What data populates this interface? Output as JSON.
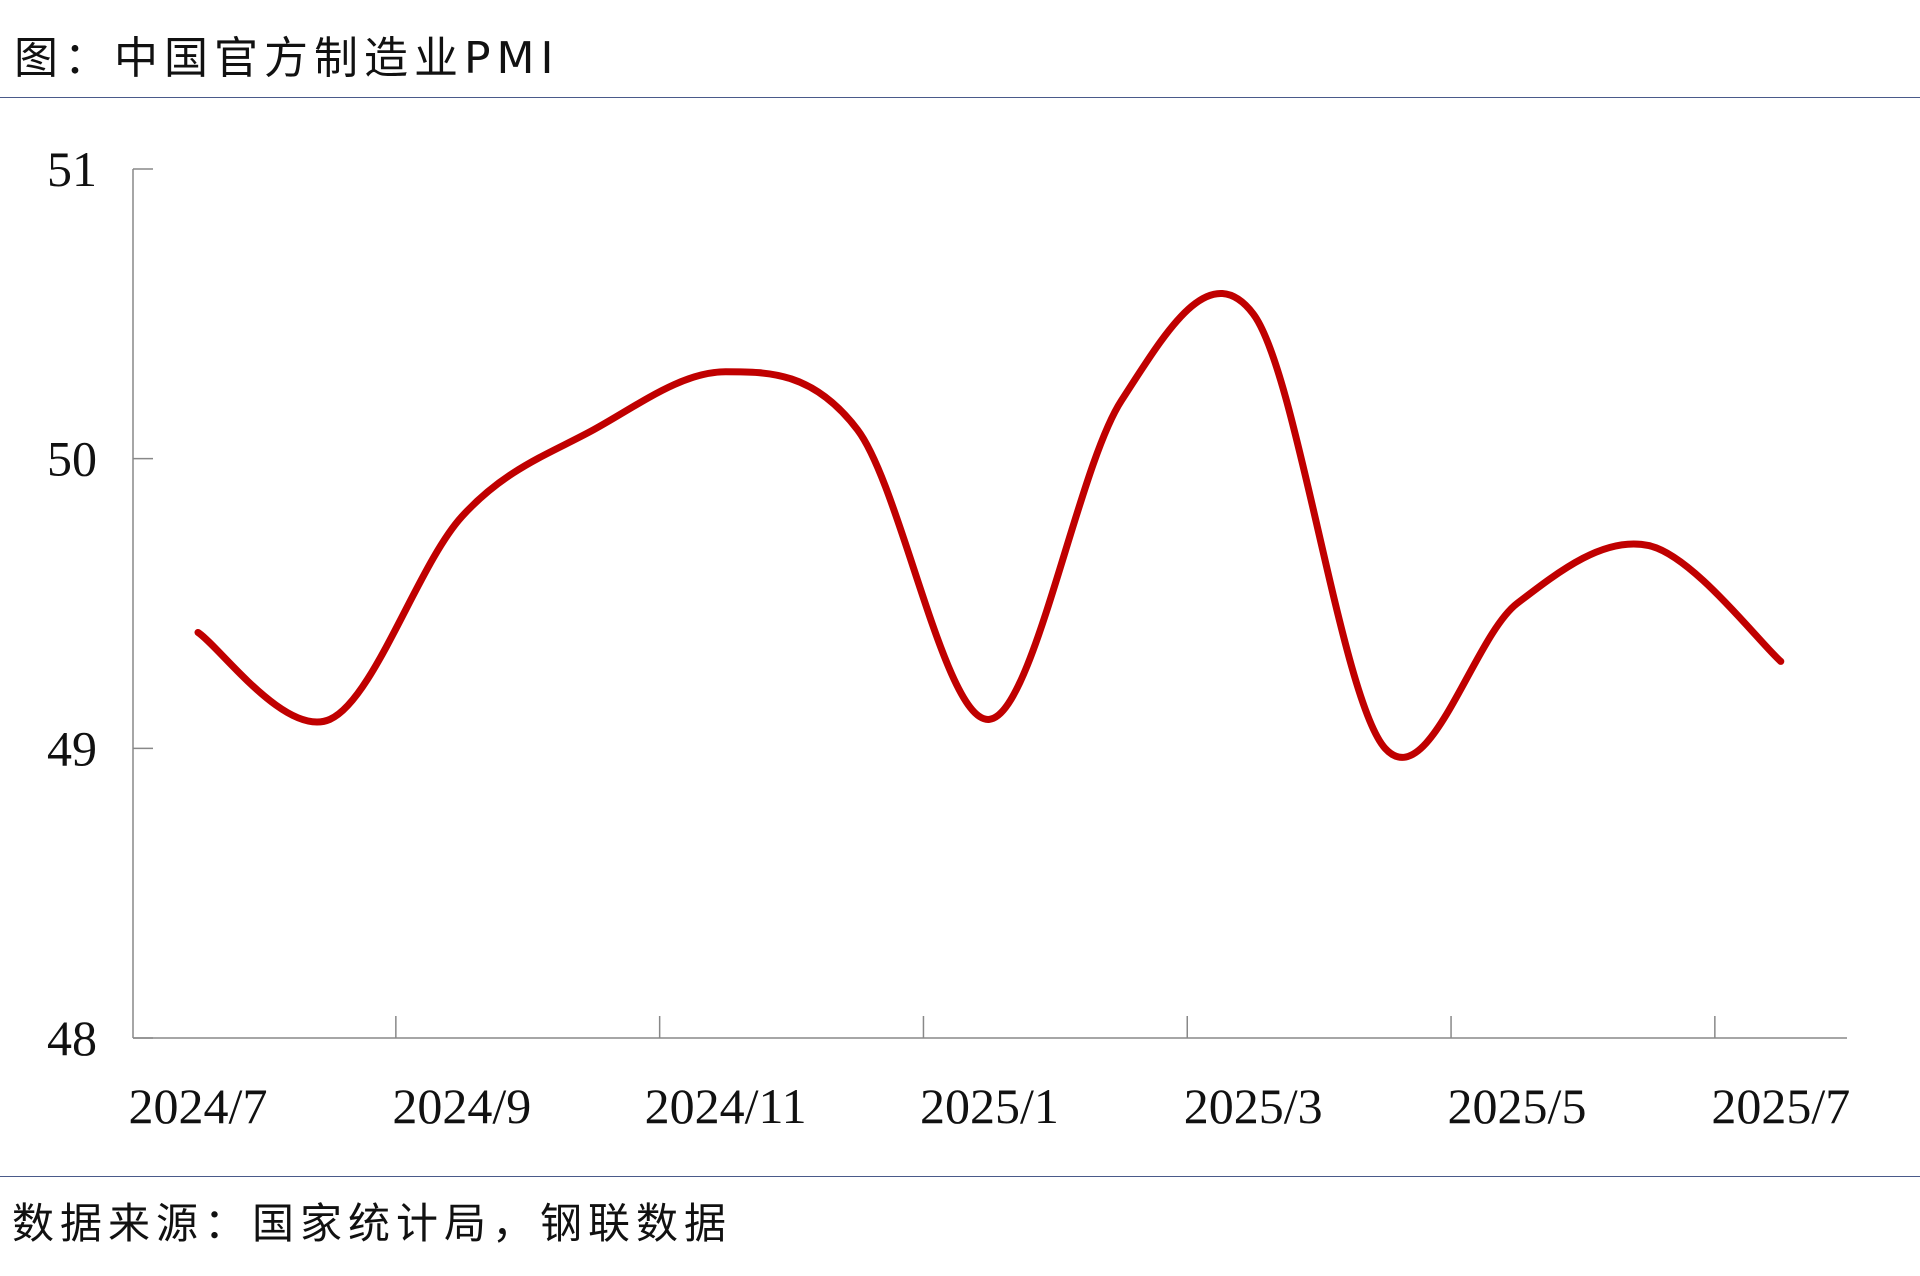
{
  "title": "图：中国官方制造业PMI",
  "source": "数据来源：国家统计局，钢联数据",
  "chart_data": {
    "type": "line",
    "title": "图：中国官方制造业PMI",
    "x": [
      "2024/7",
      "2024/8",
      "2024/9",
      "2024/10",
      "2024/11",
      "2024/12",
      "2025/1",
      "2025/2",
      "2025/3",
      "2025/4",
      "2025/5",
      "2025/6",
      "2025/7"
    ],
    "x_tick_labels": [
      "2024/7",
      "2024/9",
      "2024/11",
      "2025/1",
      "2025/3",
      "2025/5",
      "2025/7"
    ],
    "series": [
      {
        "values": [
          49.4,
          49.1,
          49.8,
          50.1,
          50.3,
          50.1,
          49.1,
          50.2,
          50.5,
          49.0,
          49.5,
          49.7,
          49.3
        ],
        "color": "#c00000"
      }
    ],
    "ylim": [
      48,
      51
    ],
    "y_ticks": [
      48,
      49,
      50,
      51
    ],
    "smooth": true,
    "grid": false,
    "legend": "none"
  }
}
